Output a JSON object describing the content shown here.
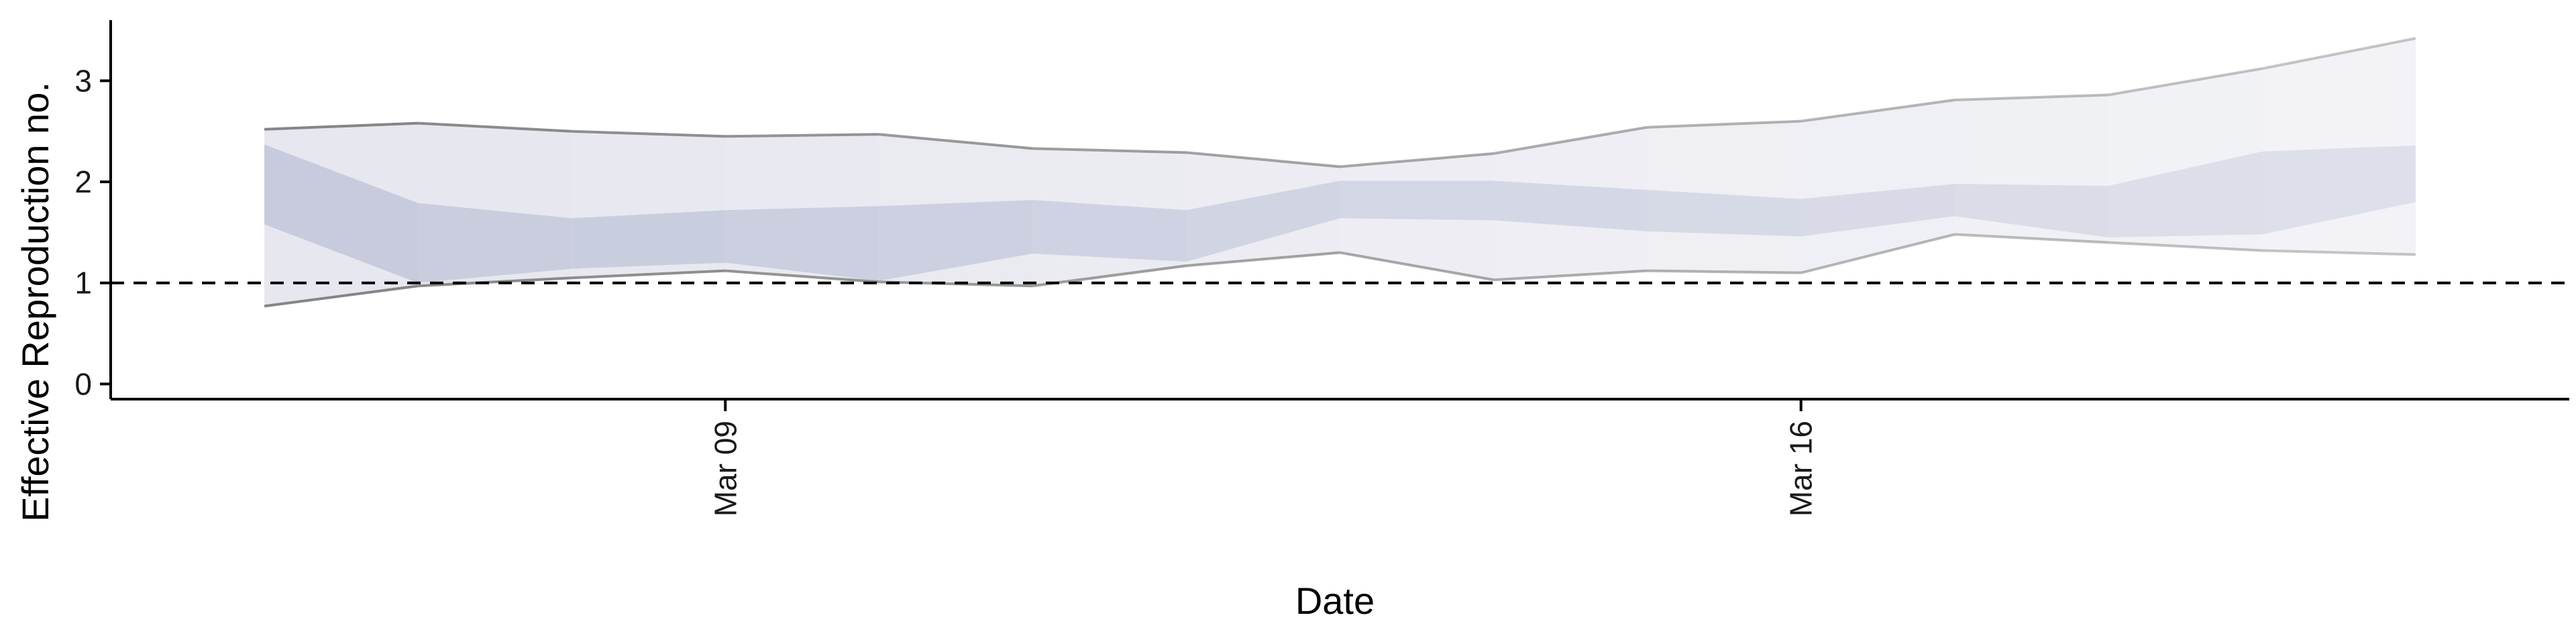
{
  "chart_data": {
    "type": "area",
    "title": "",
    "xlabel": "Date",
    "ylabel": "Effective Reproduction no.",
    "x_ticks": [
      "Mar 09",
      "Mar 16"
    ],
    "x_tick_dates": [
      "2020-03-09",
      "2020-03-16"
    ],
    "y_ticks": [
      0,
      1,
      2,
      3
    ],
    "ylim": [
      -0.15,
      3.6
    ],
    "xlim": [
      "2020-03-05",
      "2020-03-21"
    ],
    "reference_line": {
      "y": 1,
      "style": "dashed"
    },
    "grid": false,
    "dates": [
      "2020-03-06",
      "2020-03-07",
      "2020-03-08",
      "2020-03-09",
      "2020-03-10",
      "2020-03-11",
      "2020-03-12",
      "2020-03-13",
      "2020-03-14",
      "2020-03-15",
      "2020-03-16",
      "2020-03-17",
      "2020-03-18",
      "2020-03-19",
      "2020-03-20"
    ],
    "series": [
      {
        "values_upper_90": [
          2.52,
          2.58,
          2.5,
          2.45,
          2.47,
          2.33,
          2.29,
          2.15,
          2.28,
          2.54,
          2.6,
          2.81,
          2.86,
          3.12,
          3.42
        ],
        "values_lower_90": [
          0.77,
          0.97,
          1.05,
          1.12,
          1.01,
          0.97,
          1.17,
          1.3,
          1.03,
          1.12,
          1.1,
          1.48,
          1.4,
          1.32,
          1.28
        ],
        "values_upper_50": [
          2.37,
          1.79,
          1.64,
          1.72,
          1.76,
          1.82,
          1.72,
          2.01,
          2.01,
          1.92,
          1.83,
          1.98,
          1.96,
          2.3,
          2.36
        ],
        "values_lower_50": [
          1.58,
          1.0,
          1.14,
          1.2,
          1.02,
          1.29,
          1.21,
          1.64,
          1.62,
          1.51,
          1.46,
          1.66,
          1.45,
          1.48,
          1.8
        ]
      }
    ],
    "colors": {
      "band_outer": "#dcdde8",
      "band_inner": "#b7bdd4",
      "bound_line": "#7f7f7f",
      "axis": "#000000"
    }
  }
}
